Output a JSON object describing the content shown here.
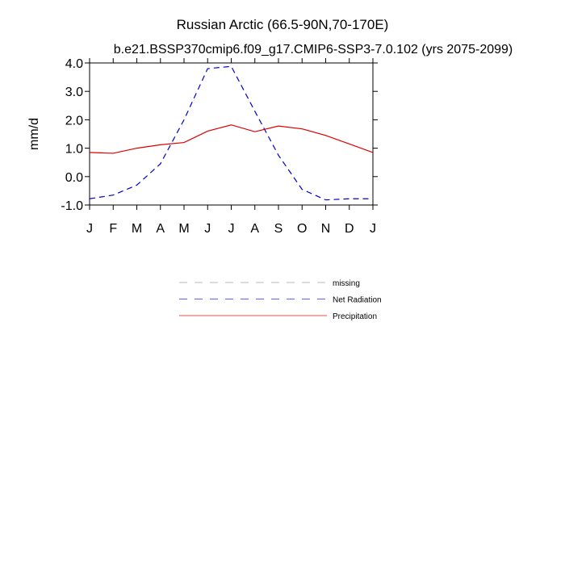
{
  "chart_data": {
    "type": "line",
    "title": "Russian Arctic (66.5-90N,70-170E)",
    "subtitle": "b.e21.BSSP370cmip6.f09_g17.CMIP6-SSP3-7.0.102 (yrs 2075-2099)",
    "y_label": "mm/d",
    "categories": [
      "J",
      "F",
      "M",
      "A",
      "M",
      "J",
      "J",
      "A",
      "S",
      "O",
      "N",
      "D",
      "J"
    ],
    "ylim": [
      -1,
      4
    ],
    "yticks": [
      {
        "value": -1,
        "label": "-1.0"
      },
      {
        "value": 0,
        "label": "0.0"
      },
      {
        "value": 1,
        "label": "1.0"
      },
      {
        "value": 2,
        "label": "2.0"
      },
      {
        "value": 3,
        "label": "3.0"
      },
      {
        "value": 4,
        "label": "4.0"
      }
    ],
    "series": [
      {
        "name": "missing",
        "color": "#999999",
        "dash": true,
        "values": [
          null,
          null,
          null,
          null,
          null,
          null,
          null,
          null,
          null,
          null,
          null,
          null,
          null
        ]
      },
      {
        "name": "Net Radiation",
        "color": "#0000cc",
        "dash": true,
        "values": [
          -0.78,
          -0.65,
          -0.3,
          0.45,
          2.0,
          3.8,
          3.88,
          2.3,
          0.75,
          -0.45,
          -0.82,
          -0.78,
          -0.78
        ]
      },
      {
        "name": "Precipitation",
        "color": "#dd0000",
        "dash": false,
        "values": [
          0.85,
          0.82,
          1.0,
          1.12,
          1.2,
          1.6,
          1.82,
          1.58,
          1.78,
          1.68,
          1.45,
          1.15,
          0.85
        ]
      }
    ]
  }
}
